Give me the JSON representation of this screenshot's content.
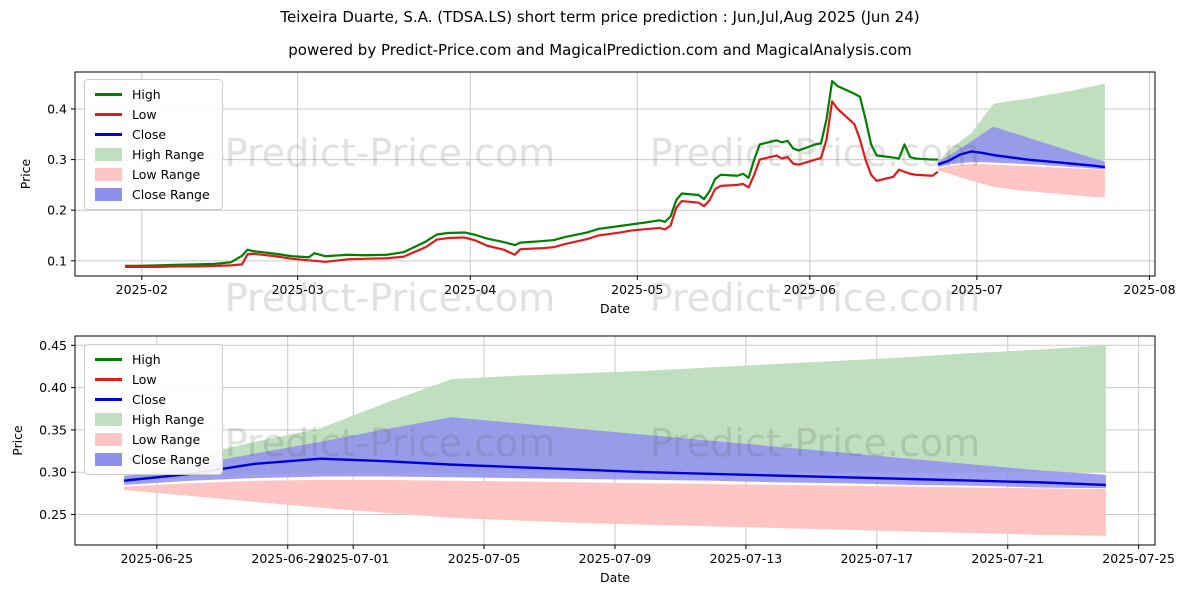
{
  "title": "Teixeira Duarte, S.A. (TDSA.LS) short term price prediction : Jun,Jul,Aug 2025 (Jun 24)",
  "subtitle": "powered by Predict-Price.com and MagicalPrediction.com and MagicalAnalysis.com",
  "watermark_text": "Predict-Price.com",
  "colors": {
    "high": "#008000",
    "low": "#e01b1b",
    "close": "#0000dd",
    "high_range": "#bfdfbf",
    "low_range": "#ffc4c4",
    "close_range": "#8f8fee",
    "grid": "#c9c9c9",
    "frame": "#000000",
    "text": "#000000"
  },
  "legend": [
    {
      "label": "High",
      "type": "line",
      "color": "high"
    },
    {
      "label": "Low",
      "type": "line",
      "color": "low"
    },
    {
      "label": "Close",
      "type": "line",
      "color": "close"
    },
    {
      "label": "High Range",
      "type": "patch",
      "color": "high_range"
    },
    {
      "label": "Low Range",
      "type": "patch",
      "color": "low_range"
    },
    {
      "label": "Close Range",
      "type": "patch",
      "color": "close_range"
    }
  ],
  "history": {
    "dates": [
      "2025-01-29",
      "2025-01-31",
      "2025-02-04",
      "2025-02-07",
      "2025-02-11",
      "2025-02-14",
      "2025-02-17",
      "2025-02-19",
      "2025-02-20",
      "2025-02-21",
      "2025-02-25",
      "2025-02-28",
      "2025-03-03",
      "2025-03-04",
      "2025-03-06",
      "2025-03-10",
      "2025-03-13",
      "2025-03-17",
      "2025-03-20",
      "2025-03-24",
      "2025-03-26",
      "2025-03-28",
      "2025-03-31",
      "2025-04-02",
      "2025-04-04",
      "2025-04-07",
      "2025-04-09",
      "2025-04-10",
      "2025-04-14",
      "2025-04-16",
      "2025-04-18",
      "2025-04-22",
      "2025-04-24",
      "2025-04-28",
      "2025-04-30",
      "2025-05-02",
      "2025-05-05",
      "2025-05-06",
      "2025-05-07",
      "2025-05-08",
      "2025-05-09",
      "2025-05-12",
      "2025-05-13",
      "2025-05-14",
      "2025-05-15",
      "2025-05-16",
      "2025-05-19",
      "2025-05-20",
      "2025-05-21",
      "2025-05-22",
      "2025-05-23",
      "2025-05-26",
      "2025-05-27",
      "2025-05-28",
      "2025-05-29",
      "2025-05-30",
      "2025-06-02",
      "2025-06-03",
      "2025-06-04",
      "2025-06-05",
      "2025-06-06",
      "2025-06-09",
      "2025-06-10",
      "2025-06-11",
      "2025-06-12",
      "2025-06-13",
      "2025-06-16",
      "2025-06-17",
      "2025-06-18",
      "2025-06-19",
      "2025-06-20",
      "2025-06-23",
      "2025-06-24"
    ],
    "high": [
      0.09,
      0.09,
      0.091,
      0.092,
      0.093,
      0.094,
      0.097,
      0.11,
      0.122,
      0.119,
      0.114,
      0.109,
      0.107,
      0.115,
      0.109,
      0.112,
      0.111,
      0.112,
      0.117,
      0.138,
      0.152,
      0.155,
      0.156,
      0.151,
      0.144,
      0.137,
      0.131,
      0.136,
      0.139,
      0.141,
      0.147,
      0.156,
      0.163,
      0.169,
      0.172,
      0.175,
      0.18,
      0.177,
      0.188,
      0.22,
      0.233,
      0.23,
      0.222,
      0.238,
      0.262,
      0.27,
      0.268,
      0.272,
      0.264,
      0.3,
      0.33,
      0.338,
      0.334,
      0.337,
      0.322,
      0.318,
      0.33,
      0.332,
      0.38,
      0.455,
      0.445,
      0.43,
      0.424,
      0.38,
      0.33,
      0.308,
      0.304,
      0.302,
      0.33,
      0.305,
      0.302,
      0.3,
      0.3
    ],
    "low": [
      0.088,
      0.088,
      0.088,
      0.089,
      0.089,
      0.09,
      0.091,
      0.093,
      0.113,
      0.114,
      0.109,
      0.104,
      0.101,
      0.1,
      0.098,
      0.103,
      0.104,
      0.105,
      0.108,
      0.127,
      0.142,
      0.145,
      0.146,
      0.14,
      0.13,
      0.122,
      0.112,
      0.123,
      0.125,
      0.127,
      0.133,
      0.143,
      0.15,
      0.156,
      0.16,
      0.162,
      0.165,
      0.162,
      0.17,
      0.205,
      0.218,
      0.215,
      0.208,
      0.22,
      0.242,
      0.248,
      0.25,
      0.252,
      0.245,
      0.27,
      0.3,
      0.308,
      0.302,
      0.305,
      0.292,
      0.29,
      0.3,
      0.303,
      0.34,
      0.415,
      0.4,
      0.37,
      0.34,
      0.3,
      0.27,
      0.258,
      0.266,
      0.28,
      0.276,
      0.272,
      0.27,
      0.268,
      0.276
    ]
  },
  "prediction": {
    "dates": [
      "2025-06-24",
      "2025-06-26",
      "2025-06-28",
      "2025-06-30",
      "2025-07-02",
      "2025-07-04",
      "2025-07-06",
      "2025-07-08",
      "2025-07-10",
      "2025-07-12",
      "2025-07-14",
      "2025-07-16",
      "2025-07-18",
      "2025-07-20",
      "2025-07-22",
      "2025-07-24"
    ],
    "close": [
      0.29,
      0.298,
      0.31,
      0.316,
      0.313,
      0.309,
      0.306,
      0.303,
      0.3,
      0.298,
      0.296,
      0.294,
      0.292,
      0.29,
      0.288,
      0.285
    ],
    "close_upper": [
      0.295,
      0.308,
      0.322,
      0.336,
      0.351,
      0.365,
      0.358,
      0.351,
      0.344,
      0.337,
      0.33,
      0.323,
      0.316,
      0.309,
      0.302,
      0.297
    ],
    "close_lower": [
      0.285,
      0.29,
      0.293,
      0.295,
      0.295,
      0.294,
      0.293,
      0.292,
      0.291,
      0.29,
      0.288,
      0.287,
      0.285,
      0.284,
      0.282,
      0.281
    ],
    "high_upper": [
      0.296,
      0.318,
      0.336,
      0.352,
      0.382,
      0.41,
      0.414,
      0.417,
      0.42,
      0.424,
      0.428,
      0.432,
      0.436,
      0.441,
      0.445,
      0.45
    ],
    "high_lower": [
      0.29,
      0.294,
      0.297,
      0.299,
      0.3,
      0.301,
      0.301,
      0.301,
      0.301,
      0.301,
      0.301,
      0.3,
      0.3,
      0.3,
      0.3,
      0.3
    ],
    "low_upper": [
      0.283,
      0.287,
      0.29,
      0.291,
      0.291,
      0.29,
      0.289,
      0.288,
      0.287,
      0.286,
      0.285,
      0.284,
      0.283,
      0.282,
      0.281,
      0.28
    ],
    "low_lower": [
      0.279,
      0.272,
      0.265,
      0.258,
      0.252,
      0.246,
      0.243,
      0.24,
      0.238,
      0.236,
      0.234,
      0.232,
      0.23,
      0.228,
      0.226,
      0.225
    ]
  },
  "chart_data": [
    {
      "type": "line",
      "name": "full-history-and-prediction",
      "xlabel": "Date",
      "ylabel": "Price",
      "xlim": [
        "2025-01-20T00:00:00",
        "2025-08-02T00:00:00"
      ],
      "ylim": [
        0.07,
        0.473
      ],
      "grid": true,
      "legend_position": "upper left",
      "x_ticks": [
        {
          "date": "2025-02-01",
          "label": "2025-02"
        },
        {
          "date": "2025-03-01",
          "label": "2025-03"
        },
        {
          "date": "2025-04-01",
          "label": "2025-04"
        },
        {
          "date": "2025-05-01",
          "label": "2025-05"
        },
        {
          "date": "2025-06-01",
          "label": "2025-06"
        },
        {
          "date": "2025-07-01",
          "label": "2025-07"
        },
        {
          "date": "2025-08-01",
          "label": "2025-08"
        }
      ],
      "y_ticks": [
        {
          "v": 0.1,
          "label": "0.1"
        },
        {
          "v": 0.2,
          "label": "0.2"
        },
        {
          "v": 0.3,
          "label": "0.3"
        },
        {
          "v": 0.4,
          "label": "0.4"
        }
      ],
      "show_history_lines": true,
      "show_prediction_bands": true,
      "show_close_line": true
    },
    {
      "type": "line",
      "name": "prediction-zoom",
      "xlabel": "Date",
      "ylabel": "Price",
      "xlim": [
        "2025-06-22T12:00:00",
        "2025-07-25T12:00:00"
      ],
      "ylim": [
        0.214,
        0.461
      ],
      "grid": true,
      "legend_position": "upper left",
      "x_ticks": [
        {
          "date": "2025-06-25",
          "label": "2025-06-25"
        },
        {
          "date": "2025-06-29",
          "label": "2025-06-29"
        },
        {
          "date": "2025-07-01",
          "label": "2025-07-01"
        },
        {
          "date": "2025-07-05",
          "label": "2025-07-05"
        },
        {
          "date": "2025-07-09",
          "label": "2025-07-09"
        },
        {
          "date": "2025-07-13",
          "label": "2025-07-13"
        },
        {
          "date": "2025-07-17",
          "label": "2025-07-17"
        },
        {
          "date": "2025-07-21",
          "label": "2025-07-21"
        },
        {
          "date": "2025-07-25",
          "label": "2025-07-25"
        }
      ],
      "y_ticks": [
        {
          "v": 0.25,
          "label": "0.25"
        },
        {
          "v": 0.3,
          "label": "0.30"
        },
        {
          "v": 0.35,
          "label": "0.35"
        },
        {
          "v": 0.4,
          "label": "0.40"
        },
        {
          "v": 0.45,
          "label": "0.45"
        }
      ],
      "show_history_lines": false,
      "show_prediction_bands": true,
      "show_close_line": true
    }
  ]
}
